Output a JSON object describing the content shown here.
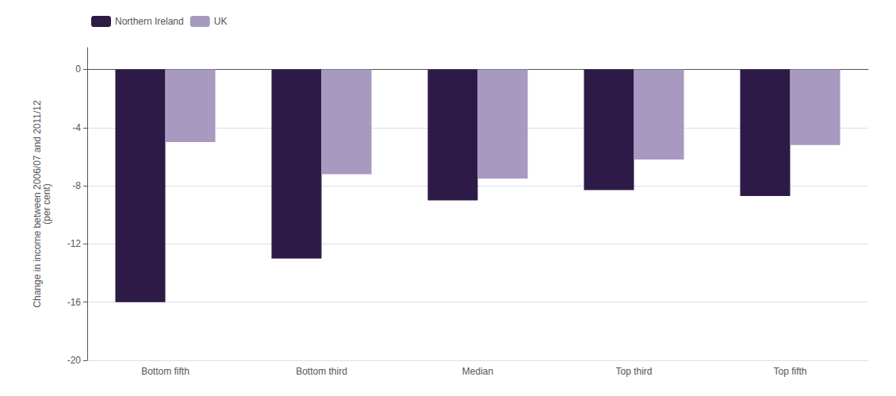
{
  "chart_data": {
    "type": "bar",
    "categories": [
      "Bottom fifth",
      "Bottom third",
      "Median",
      "Top third",
      "Top fifth"
    ],
    "series": [
      {
        "name": "Northern Ireland",
        "color": "#2d1a47",
        "values": [
          -16.0,
          -13.0,
          -9.0,
          -8.3,
          -8.7
        ]
      },
      {
        "name": "UK",
        "color": "#a899c0",
        "values": [
          -5.0,
          -7.2,
          -7.5,
          -6.2,
          -5.2
        ]
      }
    ],
    "ylabel": "Change in income between 2006/07 and 2011/12\n(per cent)",
    "ylim": [
      -20,
      1.5
    ],
    "yticks": [
      0,
      -4,
      -8,
      -12,
      -16,
      -20
    ],
    "grid": true,
    "legend": "upper left"
  }
}
